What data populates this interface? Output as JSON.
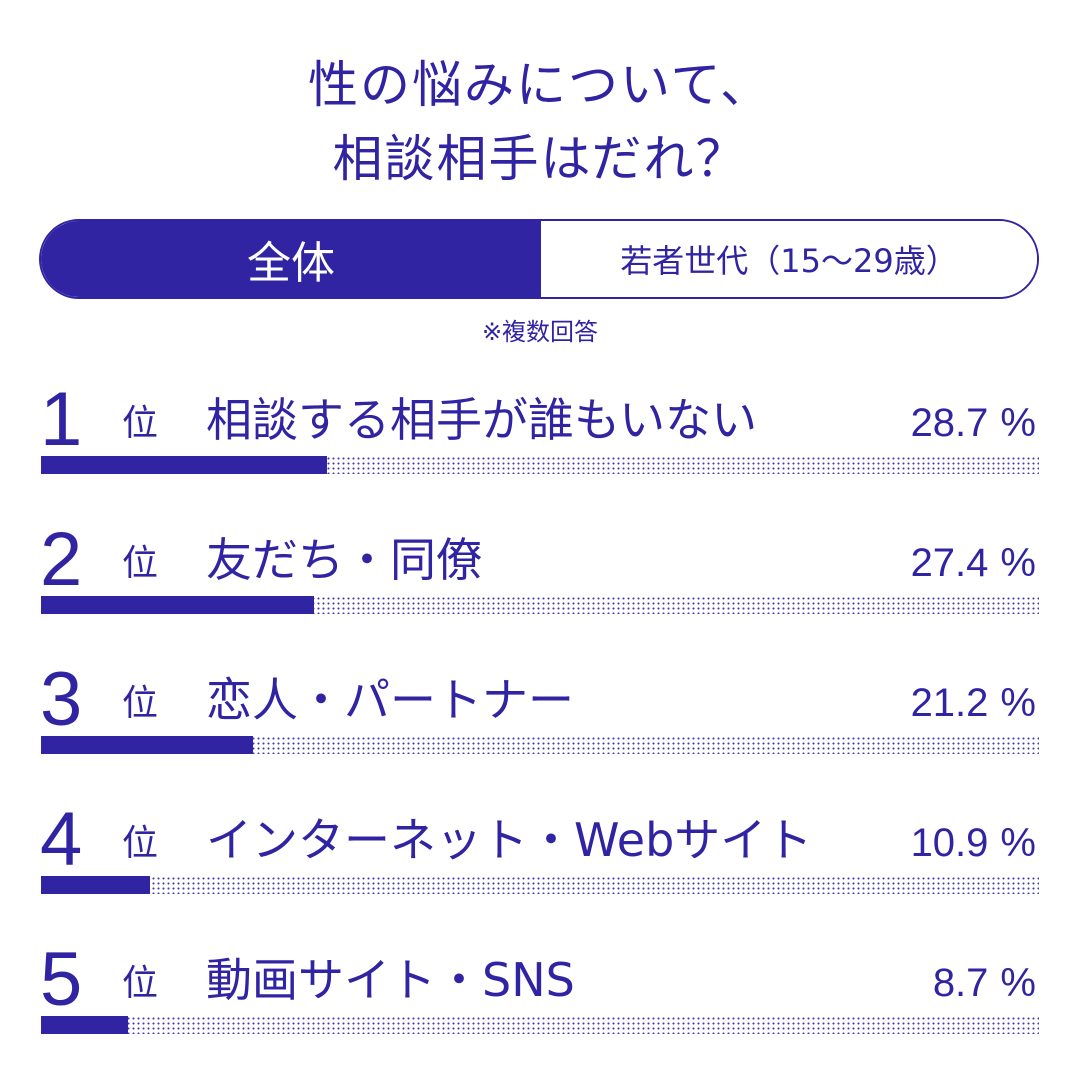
{
  "title": {
    "line1": "性の悩みについて、",
    "line2": "相談相手はだれ？"
  },
  "tabs": [
    {
      "label": "全体",
      "selected": true
    },
    {
      "label": "若者世代（15～29歳）",
      "selected": false
    }
  ],
  "note": "※複数回答",
  "rank_unit": "位",
  "percent_sign": "%",
  "colors": {
    "accent": "#3124a3",
    "background": "#ffffff"
  },
  "chart_data": {
    "type": "bar",
    "orientation": "horizontal",
    "categories": [
      "相談する相手が誰もいない",
      "友だち・同僚",
      "恋人・パートナー",
      "インターネット・Webサイト",
      "動画サイト・SNS"
    ],
    "ranks": [
      "1",
      "2",
      "3",
      "4",
      "5"
    ],
    "values": [
      28.7,
      27.4,
      21.2,
      10.9,
      8.7
    ],
    "value_labels": [
      "28.7",
      "27.4",
      "21.2",
      "10.9",
      "8.7"
    ],
    "unit": "%",
    "xlim": [
      0,
      100
    ]
  }
}
